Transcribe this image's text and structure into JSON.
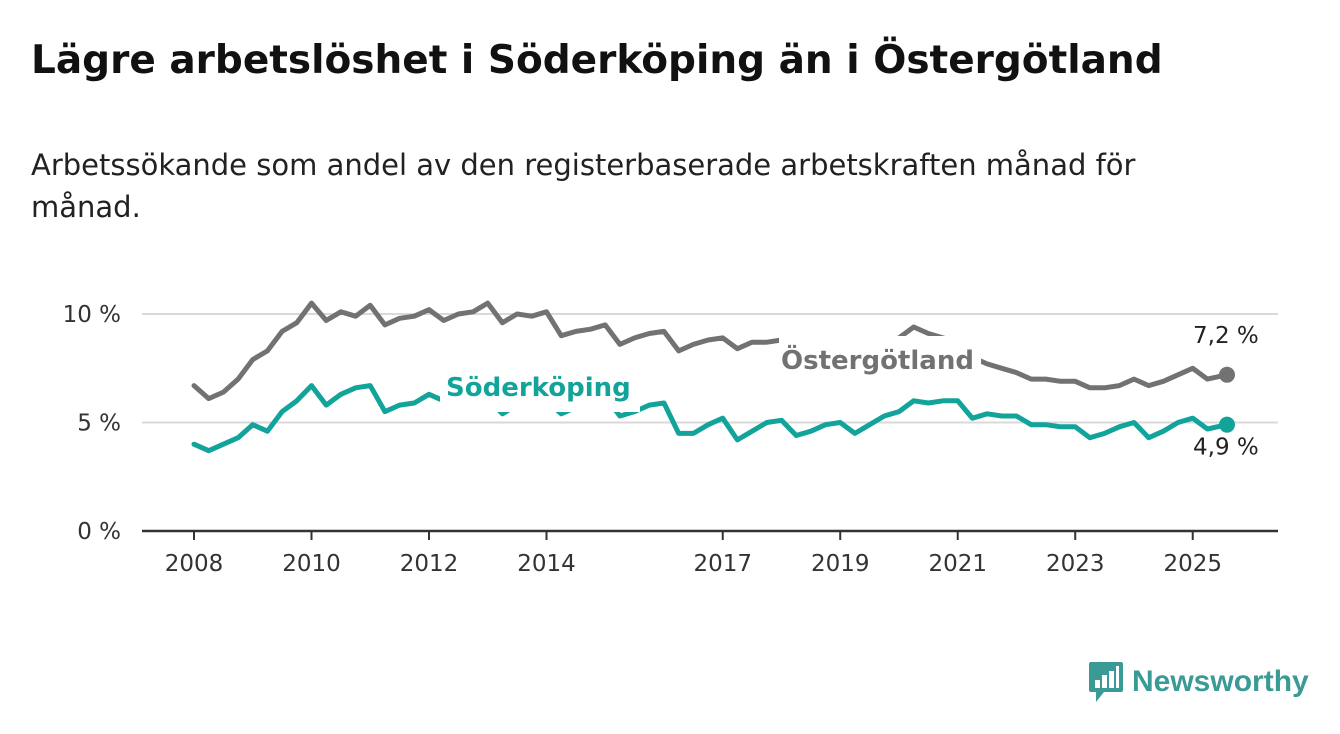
{
  "title": "Lägre arbetslöshet i Söderköping än i Östergötland",
  "subtitle": "Arbetssökande som andel av den registerbaserade arbetskraften månad för månad.",
  "brand": "Newsworthy",
  "colors": {
    "ostergotland": "#727272",
    "soderkoping": "#12a39a",
    "grid": "#d9d9d9",
    "axis": "#333333",
    "brand": "#3a9a96"
  },
  "chart_data": {
    "type": "line",
    "title": "Lägre arbetslöshet i Söderköping än i Östergötland",
    "subtitle": "Arbetssökande som andel av den registerbaserade arbetskraften månad för månad.",
    "xlabel": "",
    "ylabel": "",
    "x_range": [
      "2008-01",
      "2025-08"
    ],
    "ylim": [
      0,
      10
    ],
    "y_ticks": [
      {
        "value": 0,
        "label": "0 %"
      },
      {
        "value": 5,
        "label": "5 %"
      },
      {
        "value": 10,
        "label": "10 %"
      }
    ],
    "x_ticks": [
      "2008",
      "2010",
      "2012",
      "2014",
      "2017",
      "2019",
      "2021",
      "2023",
      "2025"
    ],
    "grid": "horizontal",
    "series": [
      {
        "name": "Östergötland",
        "end_label": "7,2 %",
        "data": [
          [
            "2008-01",
            6.7
          ],
          [
            "2008-04",
            6.1
          ],
          [
            "2008-07",
            6.4
          ],
          [
            "2008-10",
            7.0
          ],
          [
            "2009-01",
            7.9
          ],
          [
            "2009-04",
            8.3
          ],
          [
            "2009-07",
            9.2
          ],
          [
            "2009-10",
            9.6
          ],
          [
            "2010-01",
            10.5
          ],
          [
            "2010-04",
            9.7
          ],
          [
            "2010-07",
            10.1
          ],
          [
            "2010-10",
            9.9
          ],
          [
            "2011-01",
            10.4
          ],
          [
            "2011-04",
            9.5
          ],
          [
            "2011-07",
            9.8
          ],
          [
            "2011-10",
            9.9
          ],
          [
            "2012-01",
            10.2
          ],
          [
            "2012-04",
            9.7
          ],
          [
            "2012-07",
            10.0
          ],
          [
            "2012-10",
            10.1
          ],
          [
            "2013-01",
            10.5
          ],
          [
            "2013-04",
            9.6
          ],
          [
            "2013-07",
            10.0
          ],
          [
            "2013-10",
            9.9
          ],
          [
            "2014-01",
            10.1
          ],
          [
            "2014-04",
            9.0
          ],
          [
            "2014-07",
            9.2
          ],
          [
            "2014-10",
            9.3
          ],
          [
            "2015-01",
            9.5
          ],
          [
            "2015-04",
            8.6
          ],
          [
            "2015-07",
            8.9
          ],
          [
            "2015-10",
            9.1
          ],
          [
            "2016-01",
            9.2
          ],
          [
            "2016-04",
            8.3
          ],
          [
            "2016-07",
            8.6
          ],
          [
            "2016-10",
            8.8
          ],
          [
            "2017-01",
            8.9
          ],
          [
            "2017-04",
            8.4
          ],
          [
            "2017-07",
            8.7
          ],
          [
            "2017-10",
            8.7
          ],
          [
            "2018-01",
            8.8
          ],
          [
            "2018-04",
            8.1
          ],
          [
            "2018-07",
            8.4
          ],
          [
            "2018-10",
            8.5
          ],
          [
            "2019-01",
            8.6
          ],
          [
            "2019-04",
            8.0
          ],
          [
            "2019-07",
            8.3
          ],
          [
            "2019-10",
            8.6
          ],
          [
            "2020-01",
            8.9
          ],
          [
            "2020-04",
            9.4
          ],
          [
            "2020-07",
            9.1
          ],
          [
            "2020-10",
            8.9
          ],
          [
            "2021-01",
            8.7
          ],
          [
            "2021-04",
            8.0
          ],
          [
            "2021-07",
            7.7
          ],
          [
            "2021-10",
            7.5
          ],
          [
            "2022-01",
            7.3
          ],
          [
            "2022-04",
            7.0
          ],
          [
            "2022-07",
            7.0
          ],
          [
            "2022-10",
            6.9
          ],
          [
            "2023-01",
            6.9
          ],
          [
            "2023-04",
            6.6
          ],
          [
            "2023-07",
            6.6
          ],
          [
            "2023-10",
            6.7
          ],
          [
            "2024-01",
            7.0
          ],
          [
            "2024-04",
            6.7
          ],
          [
            "2024-07",
            6.9
          ],
          [
            "2024-10",
            7.2
          ],
          [
            "2025-01",
            7.5
          ],
          [
            "2025-04",
            7.0
          ],
          [
            "2025-08",
            7.2
          ]
        ]
      },
      {
        "name": "Söderköping",
        "end_label": "4,9 %",
        "data": [
          [
            "2008-01",
            4.0
          ],
          [
            "2008-04",
            3.7
          ],
          [
            "2008-07",
            4.0
          ],
          [
            "2008-10",
            4.3
          ],
          [
            "2009-01",
            4.9
          ],
          [
            "2009-04",
            4.6
          ],
          [
            "2009-07",
            5.5
          ],
          [
            "2009-10",
            6.0
          ],
          [
            "2010-01",
            6.7
          ],
          [
            "2010-04",
            5.8
          ],
          [
            "2010-07",
            6.3
          ],
          [
            "2010-10",
            6.6
          ],
          [
            "2011-01",
            6.7
          ],
          [
            "2011-04",
            5.5
          ],
          [
            "2011-07",
            5.8
          ],
          [
            "2011-10",
            5.9
          ],
          [
            "2012-01",
            6.3
          ],
          [
            "2012-04",
            6.0
          ],
          [
            "2012-07",
            6.1
          ],
          [
            "2012-10",
            6.1
          ],
          [
            "2013-01",
            6.1
          ],
          [
            "2013-04",
            5.4
          ],
          [
            "2013-07",
            5.8
          ],
          [
            "2013-10",
            5.9
          ],
          [
            "2014-01",
            6.0
          ],
          [
            "2014-04",
            5.4
          ],
          [
            "2014-07",
            5.7
          ],
          [
            "2014-10",
            5.9
          ],
          [
            "2015-01",
            6.2
          ],
          [
            "2015-04",
            5.3
          ],
          [
            "2015-07",
            5.5
          ],
          [
            "2015-10",
            5.8
          ],
          [
            "2016-01",
            5.9
          ],
          [
            "2016-04",
            4.5
          ],
          [
            "2016-07",
            4.5
          ],
          [
            "2016-10",
            4.9
          ],
          [
            "2017-01",
            5.2
          ],
          [
            "2017-04",
            4.2
          ],
          [
            "2017-07",
            4.6
          ],
          [
            "2017-10",
            5.0
          ],
          [
            "2018-01",
            5.1
          ],
          [
            "2018-04",
            4.4
          ],
          [
            "2018-07",
            4.6
          ],
          [
            "2018-10",
            4.9
          ],
          [
            "2019-01",
            5.0
          ],
          [
            "2019-04",
            4.5
          ],
          [
            "2019-07",
            4.9
          ],
          [
            "2019-10",
            5.3
          ],
          [
            "2020-01",
            5.5
          ],
          [
            "2020-04",
            6.0
          ],
          [
            "2020-07",
            5.9
          ],
          [
            "2020-10",
            6.0
          ],
          [
            "2021-01",
            6.0
          ],
          [
            "2021-04",
            5.2
          ],
          [
            "2021-07",
            5.4
          ],
          [
            "2021-10",
            5.3
          ],
          [
            "2022-01",
            5.3
          ],
          [
            "2022-04",
            4.9
          ],
          [
            "2022-07",
            4.9
          ],
          [
            "2022-10",
            4.8
          ],
          [
            "2023-01",
            4.8
          ],
          [
            "2023-04",
            4.3
          ],
          [
            "2023-07",
            4.5
          ],
          [
            "2023-10",
            4.8
          ],
          [
            "2024-01",
            5.0
          ],
          [
            "2024-04",
            4.3
          ],
          [
            "2024-07",
            4.6
          ],
          [
            "2024-10",
            5.0
          ],
          [
            "2025-01",
            5.2
          ],
          [
            "2025-04",
            4.7
          ],
          [
            "2025-08",
            4.9
          ]
        ]
      }
    ]
  }
}
